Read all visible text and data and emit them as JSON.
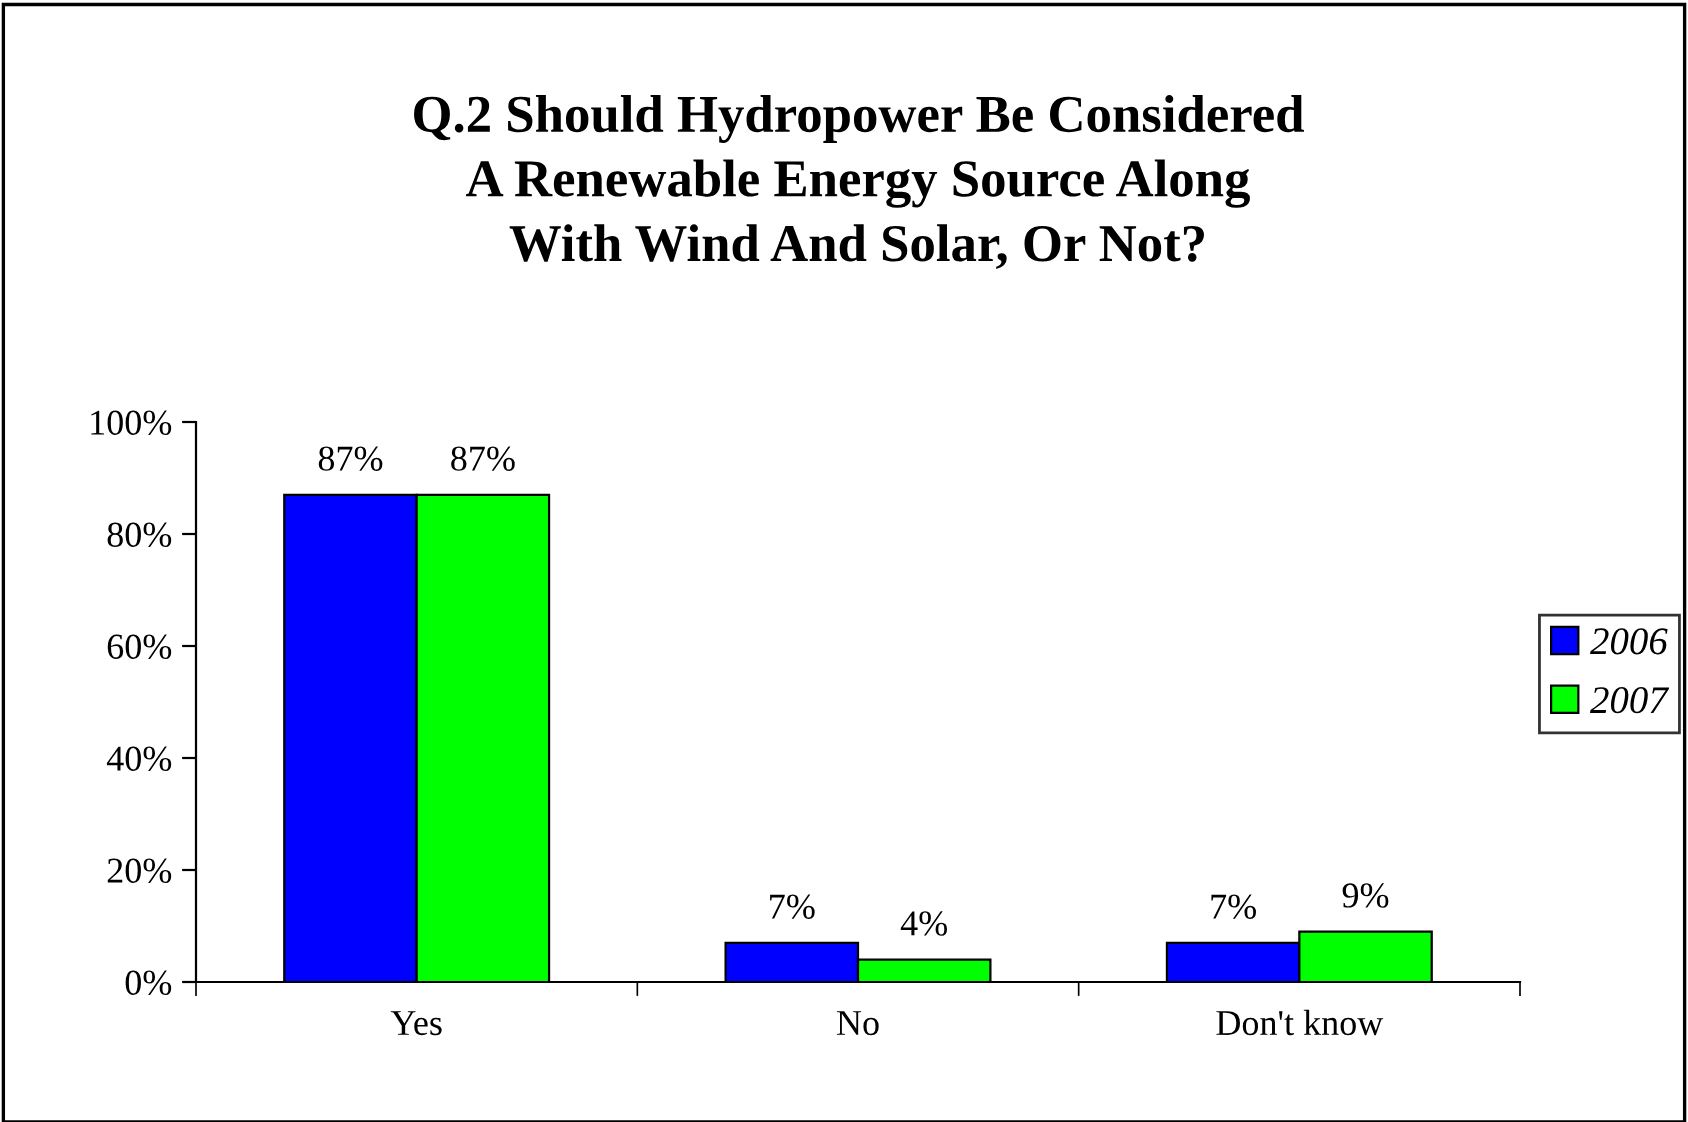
{
  "chart_data": {
    "type": "bar",
    "title": "Q.2 Should Hydropower Be Considered\nA Renewable Energy Source Along\nWith Wind And Solar, Or Not?",
    "categories": [
      "Yes",
      "No",
      "Don't know"
    ],
    "series": [
      {
        "name": "2006",
        "color": "#0000ff",
        "values": [
          87,
          7,
          7
        ],
        "value_labels": [
          "87%",
          "7%",
          "7%"
        ]
      },
      {
        "name": "2007",
        "color": "#00ff00",
        "values": [
          87,
          4,
          9
        ],
        "value_labels": [
          "87%",
          "4%",
          "9%"
        ]
      }
    ],
    "ylim": [
      0,
      100
    ],
    "yticks": [
      {
        "value": 0,
        "label": "0%"
      },
      {
        "value": 20,
        "label": "20%"
      },
      {
        "value": 40,
        "label": "40%"
      },
      {
        "value": 60,
        "label": "60%"
      },
      {
        "value": 80,
        "label": "80%"
      },
      {
        "value": 100,
        "label": "100%"
      }
    ],
    "grid": false,
    "legend": "right"
  }
}
